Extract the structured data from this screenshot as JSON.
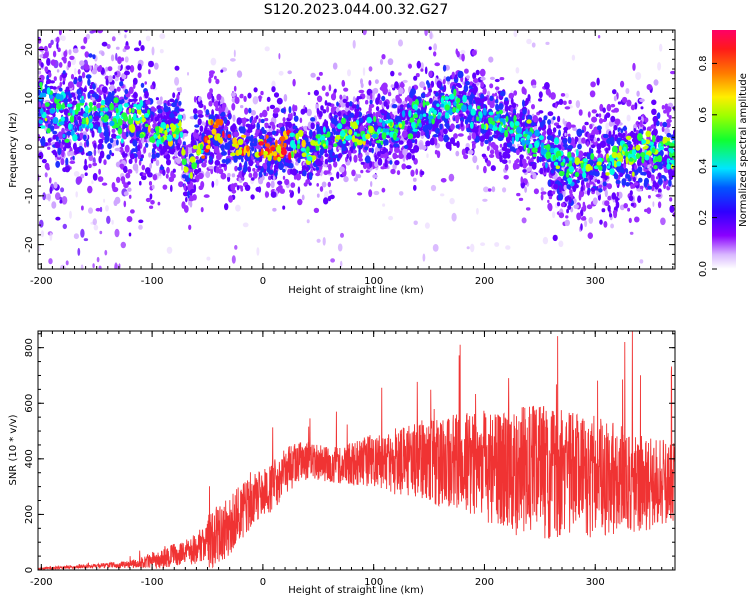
{
  "title": "S120.2023.044.00.32.G27",
  "colors": {
    "snr_line": "#f03333",
    "axis": "#000000"
  },
  "chart_data": [
    {
      "type": "heatmap",
      "xlabel": "Height of straight line (km)",
      "ylabel": "Frequency (Hz)",
      "xlim": [
        -203,
        372
      ],
      "ylim": [
        -25,
        24
      ],
      "xticks": [
        "-200",
        "-100",
        "0",
        "100",
        "200",
        "300"
      ],
      "xtick_values": [
        -200,
        -100,
        0,
        100,
        200,
        300
      ],
      "yticks": [
        "20",
        "10",
        "0",
        "-10",
        "-20"
      ],
      "ytick_values": [
        20,
        10,
        0,
        -10,
        -20
      ],
      "colorbar": {
        "label": "Normalized spectral amplitude",
        "range": [
          0,
          0.93
        ],
        "ticks": [
          "0.0",
          "0.2",
          "0.4",
          "0.6",
          "0.8"
        ],
        "tick_values": [
          0.0,
          0.2,
          0.4,
          0.6,
          0.8
        ],
        "colorscale": "rainbow (white-lavender, violet, blue, cyan, green, yellow, orange, red, magenta)"
      },
      "ridge_centerline": {
        "x": [
          -200,
          -170,
          -150,
          -125,
          -110,
          -95,
          -85,
          -75,
          -68,
          -60,
          -55,
          -50,
          -45,
          -40,
          -30,
          -20,
          -10,
          0,
          10,
          20,
          30,
          40,
          50,
          60,
          70,
          80,
          90,
          100,
          110,
          120,
          130,
          140,
          150,
          160,
          170,
          180,
          190,
          200,
          210,
          220,
          230,
          240,
          250,
          260,
          270,
          280,
          290,
          300,
          310,
          320,
          330,
          340,
          350,
          360,
          370
        ],
        "y": [
          8,
          6,
          7,
          5,
          6,
          2,
          3,
          4,
          -8,
          1,
          -1,
          2,
          3.5,
          3,
          1.5,
          0,
          0,
          -0.5,
          -1,
          0.5,
          1,
          -1,
          1,
          2,
          3,
          4,
          3,
          3,
          4,
          4,
          5,
          6,
          7,
          8,
          9,
          9,
          7,
          6,
          5,
          4,
          3,
          2,
          0,
          -2,
          -3,
          -4,
          -4,
          -3,
          -3,
          -2,
          -2,
          -1,
          -1,
          -1,
          -1
        ]
      }
    },
    {
      "type": "line",
      "xlabel": "Height of straight line (km)",
      "ylabel": "SNR (10 * v/v)",
      "xlim": [
        -203,
        372
      ],
      "ylim": [
        0,
        860
      ],
      "xticks": [
        "-200",
        "-100",
        "0",
        "100",
        "200",
        "300"
      ],
      "xtick_values": [
        -200,
        -100,
        0,
        100,
        200,
        300
      ],
      "yticks": [
        "0",
        "200",
        "400",
        "600",
        "800"
      ],
      "ytick_values": [
        0,
        200,
        400,
        600,
        800
      ],
      "series": [
        {
          "x": [
            -200,
            -175,
            -150,
            -125,
            -110,
            -100,
            -90,
            -80,
            -70,
            -60,
            -50,
            -40,
            -30,
            -20,
            -10,
            0,
            10,
            20,
            30,
            40,
            50,
            60,
            70,
            80,
            90,
            100,
            110,
            120,
            130,
            140,
            150,
            160,
            170,
            180,
            190,
            200,
            210,
            220,
            230,
            240,
            250,
            260,
            270,
            280,
            290,
            300,
            310,
            320,
            330,
            340,
            350,
            360,
            372
          ],
          "y": [
            5,
            10,
            15,
            20,
            25,
            35,
            45,
            55,
            65,
            75,
            95,
            130,
            165,
            205,
            250,
            270,
            310,
            350,
            385,
            395,
            385,
            380,
            380,
            385,
            390,
            395,
            400,
            390,
            395,
            400,
            395,
            385,
            390,
            385,
            380,
            375,
            370,
            365,
            360,
            355,
            350,
            350,
            345,
            345,
            340,
            335,
            330,
            325,
            320,
            320,
            315,
            315,
            310
          ],
          "noise_amplitude": [
            3,
            5,
            8,
            12,
            18,
            30,
            40,
            40,
            45,
            55,
            95,
            110,
            110,
            100,
            95,
            90,
            90,
            85,
            80,
            70,
            65,
            65,
            70,
            80,
            90,
            100,
            110,
            120,
            130,
            140,
            150,
            160,
            170,
            180,
            190,
            200,
            210,
            220,
            240,
            240,
            240,
            240,
            230,
            230,
            220,
            220,
            210,
            200,
            190,
            180,
            170,
            160,
            150
          ]
        }
      ]
    }
  ]
}
